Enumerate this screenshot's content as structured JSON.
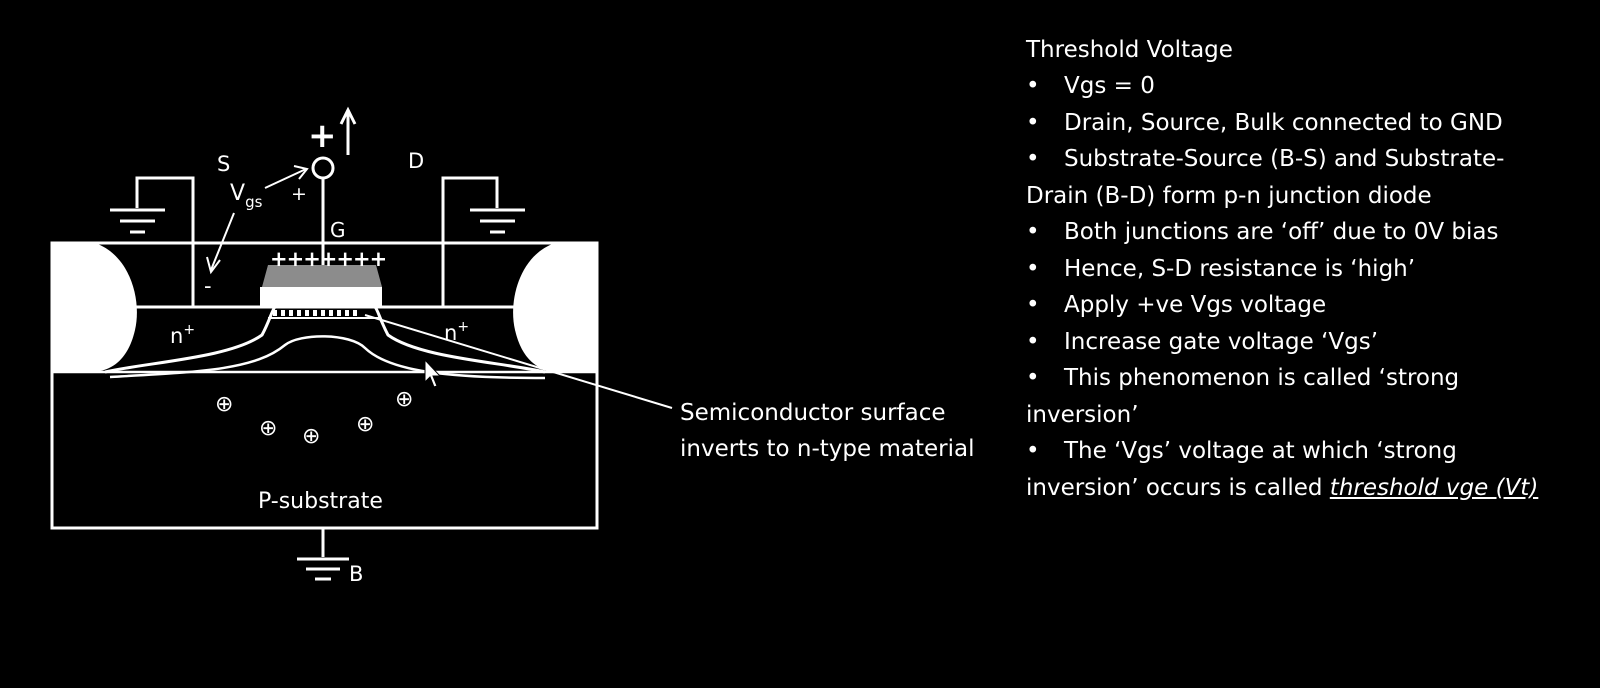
{
  "diagram": {
    "source_label": "S",
    "drain_label": "D",
    "gate_label": "G",
    "vgs_label": "V",
    "vgs_sub": "gs",
    "plus_small": "+",
    "minus_small": "-",
    "plus_big": "+",
    "gate_charges": "+++++++",
    "n_left": "n",
    "n_right": "n",
    "n_sup": "+",
    "substrate_label": "P-substrate",
    "bulk_label": "B",
    "hole_symbol": "⊕",
    "callout_line1": "Semiconductor surface",
    "callout_line2": "inverts to n-type material"
  },
  "notes": {
    "title": "Threshold Voltage",
    "bullet_char": "•",
    "bullets": {
      "b1": "Vgs = 0",
      "b2": "Drain, Source, Bulk connected to GND",
      "b3a": "Substrate-Source (B-S) and Substrate-",
      "b3b": "Drain (B-D) form p-n junction diode",
      "b4": "Both junctions are ‘off’ due to 0V bias",
      "b5": "Hence, S-D resistance is ‘high’",
      "b6": "Apply +ve Vgs voltage",
      "b7": "Increase gate voltage ‘Vgs’",
      "b8a": "This phenomenon is called ‘strong",
      "b8b": "inversion’",
      "b9a": "The ‘Vgs’ voltage at which ‘strong",
      "b9b_plain": "inversion’ occurs is called ",
      "b9b_em": "threshold vge (Vt)"
    }
  }
}
